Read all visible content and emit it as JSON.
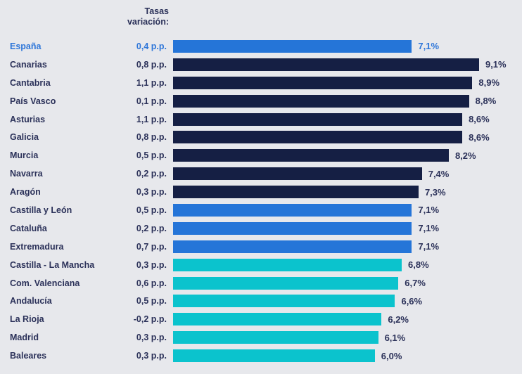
{
  "chart_data": {
    "type": "bar",
    "orientation": "horizontal",
    "column_header": {
      "line1": "Tasas",
      "line2": "variación:"
    },
    "unit": "%",
    "xlim": [
      0,
      9.5
    ],
    "grid": false,
    "legend": false,
    "colors": {
      "navy": "#151f44",
      "blue": "#2575d8",
      "cyan": "#0bc3cd",
      "highlight_text": "#2e76d9",
      "text": "#2b3159",
      "background": "#e7e8ec"
    },
    "rows": [
      {
        "region": "España",
        "variation": "0,4 p.p.",
        "value": 7.1,
        "label": "7,1%",
        "color": "blue",
        "highlight": true
      },
      {
        "region": "Canarias",
        "variation": "0,8 p.p.",
        "value": 9.1,
        "label": "9,1%",
        "color": "navy",
        "highlight": false
      },
      {
        "region": "Cantabria",
        "variation": "1,1 p.p.",
        "value": 8.9,
        "label": "8,9%",
        "color": "navy",
        "highlight": false
      },
      {
        "region": "País Vasco",
        "variation": "0,1 p.p.",
        "value": 8.8,
        "label": "8,8%",
        "color": "navy",
        "highlight": false
      },
      {
        "region": "Asturias",
        "variation": "1,1 p.p.",
        "value": 8.6,
        "label": "8,6%",
        "color": "navy",
        "highlight": false
      },
      {
        "region": "Galicia",
        "variation": "0,8 p.p.",
        "value": 8.6,
        "label": "8,6%",
        "color": "navy",
        "highlight": false
      },
      {
        "region": "Murcia",
        "variation": "0,5 p.p.",
        "value": 8.2,
        "label": "8,2%",
        "color": "navy",
        "highlight": false
      },
      {
        "region": "Navarra",
        "variation": "0,2 p.p.",
        "value": 7.4,
        "label": "7,4%",
        "color": "navy",
        "highlight": false
      },
      {
        "region": "Aragón",
        "variation": "0,3 p.p.",
        "value": 7.3,
        "label": "7,3%",
        "color": "navy",
        "highlight": false
      },
      {
        "region": "Castilla y León",
        "variation": "0,5 p.p.",
        "value": 7.1,
        "label": "7,1%",
        "color": "blue",
        "highlight": false
      },
      {
        "region": "Cataluña",
        "variation": "0,2 p.p.",
        "value": 7.1,
        "label": "7,1%",
        "color": "blue",
        "highlight": false
      },
      {
        "region": "Extremadura",
        "variation": "0,7 p.p.",
        "value": 7.1,
        "label": "7,1%",
        "color": "blue",
        "highlight": false
      },
      {
        "region": "Castilla - La Mancha",
        "variation": "0,3 p.p.",
        "value": 6.8,
        "label": "6,8%",
        "color": "cyan",
        "highlight": false
      },
      {
        "region": "Com. Valenciana",
        "variation": "0,6 p.p.",
        "value": 6.7,
        "label": "6,7%",
        "color": "cyan",
        "highlight": false
      },
      {
        "region": "Andalucía",
        "variation": "0,5 p.p.",
        "value": 6.6,
        "label": "6,6%",
        "color": "cyan",
        "highlight": false
      },
      {
        "region": "La Rioja",
        "variation": "-0,2 p.p.",
        "value": 6.2,
        "label": "6,2%",
        "color": "cyan",
        "highlight": false
      },
      {
        "region": "Madrid",
        "variation": "0,3 p.p.",
        "value": 6.1,
        "label": "6,1%",
        "color": "cyan",
        "highlight": false
      },
      {
        "region": "Baleares",
        "variation": "0,3 p.p.",
        "value": 6.0,
        "label": "6,0%",
        "color": "cyan",
        "highlight": false
      }
    ]
  }
}
